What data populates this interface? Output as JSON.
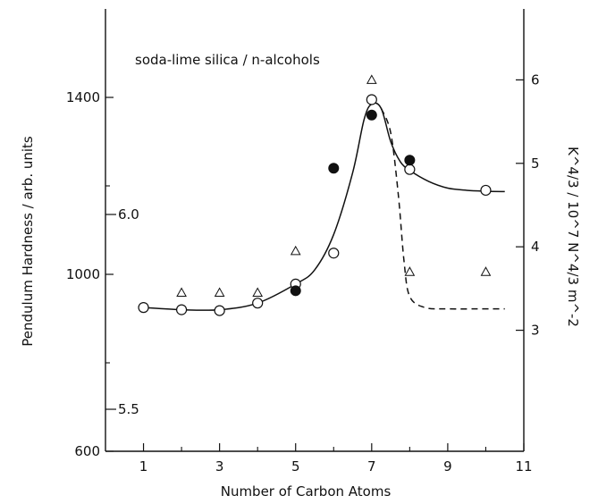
{
  "chart_data": {
    "type": "scatter",
    "annotation": "soda-lime silica / n-alcohols",
    "xlabel": "Number of Carbon Atoms",
    "ylabel_left": "Pendulum Hardness / arb. units",
    "ylabel_right": "K^4/3 / 10^7 N^4/3 m^-2",
    "xlim": [
      0,
      11
    ],
    "ylim_left": [
      600,
      1600
    ],
    "ylim_right": [
      1.55,
      6.85
    ],
    "x_ticks": [
      "1",
      "3",
      "5",
      "7",
      "9",
      "11"
    ],
    "x_minor_ticks": [
      2,
      4,
      6,
      8,
      10
    ],
    "y_left_ticks": [
      "600",
      "1000",
      "1400"
    ],
    "y_left_minor_ticks": [
      800,
      1200
    ],
    "y_right_ticks": [
      "3",
      "4",
      "5",
      "6"
    ],
    "y_inner_ticks": [
      "5.5",
      "6.0"
    ],
    "series": [
      {
        "marker": "open-circle",
        "axis": "left",
        "points": [
          [
            1,
            925
          ],
          [
            2,
            920
          ],
          [
            3,
            918
          ],
          [
            4,
            935
          ],
          [
            5,
            978
          ],
          [
            6,
            1048
          ],
          [
            7,
            1395
          ],
          [
            8,
            1237
          ],
          [
            10,
            1190
          ]
        ]
      },
      {
        "marker": "filled-circle",
        "axis": "left",
        "points": [
          [
            5,
            963
          ],
          [
            6,
            1240
          ],
          [
            7,
            1360
          ],
          [
            8,
            1258
          ]
        ]
      },
      {
        "marker": "open-triangle",
        "axis": "right",
        "points": [
          [
            2,
            3.45
          ],
          [
            3,
            3.45
          ],
          [
            4,
            3.45
          ],
          [
            5,
            3.95
          ],
          [
            7,
            6.0
          ],
          [
            8,
            3.7
          ],
          [
            10,
            3.7
          ]
        ]
      }
    ],
    "fit_curves": [
      {
        "style": "solid",
        "axis": "left",
        "points": [
          [
            1,
            925
          ],
          [
            2,
            920
          ],
          [
            3,
            920
          ],
          [
            4,
            935
          ],
          [
            5,
            978
          ],
          [
            5.5,
            1010
          ],
          [
            6,
            1090
          ],
          [
            6.5,
            1230
          ],
          [
            6.8,
            1350
          ],
          [
            7,
            1385
          ],
          [
            7.25,
            1375
          ],
          [
            7.5,
            1300
          ],
          [
            7.75,
            1255
          ],
          [
            8,
            1235
          ],
          [
            8.5,
            1210
          ],
          [
            9,
            1195
          ],
          [
            9.5,
            1190
          ],
          [
            10,
            1188
          ],
          [
            10.5,
            1187
          ]
        ]
      },
      {
        "style": "dashed",
        "axis": "left",
        "points": [
          [
            7.25,
            1375
          ],
          [
            7.5,
            1320
          ],
          [
            7.7,
            1180
          ],
          [
            7.85,
            1030
          ],
          [
            8,
            950
          ],
          [
            8.4,
            925
          ],
          [
            9,
            922
          ],
          [
            10,
            922
          ],
          [
            10.5,
            922
          ]
        ]
      }
    ]
  }
}
